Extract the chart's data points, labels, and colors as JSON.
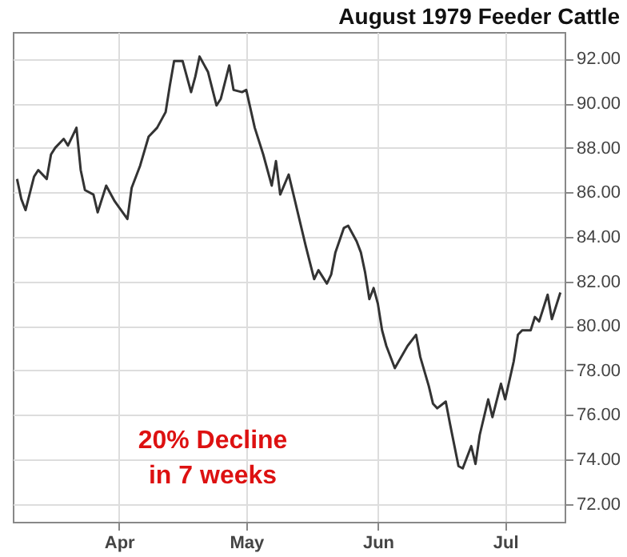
{
  "chart_data": {
    "type": "line",
    "title": "August 1979 Feeder Cattle",
    "x": [
      "1979-03-08",
      "1979-03-09",
      "1979-03-10",
      "1979-03-12",
      "1979-03-13",
      "1979-03-15",
      "1979-03-16",
      "1979-03-17",
      "1979-03-19",
      "1979-03-20",
      "1979-03-22",
      "1979-03-23",
      "1979-03-24",
      "1979-03-26",
      "1979-03-27",
      "1979-03-29",
      "1979-03-31",
      "1979-04-03",
      "1979-04-04",
      "1979-04-06",
      "1979-04-08",
      "1979-04-10",
      "1979-04-12",
      "1979-04-13",
      "1979-04-14",
      "1979-04-16",
      "1979-04-18",
      "1979-04-19",
      "1979-04-20",
      "1979-04-22",
      "1979-04-24",
      "1979-04-25",
      "1979-04-27",
      "1979-04-28",
      "1979-04-30",
      "1979-05-01",
      "1979-05-03",
      "1979-05-05",
      "1979-05-07",
      "1979-05-08",
      "1979-05-09",
      "1979-05-11",
      "1979-05-13",
      "1979-05-15",
      "1979-05-17",
      "1979-05-18",
      "1979-05-20",
      "1979-05-21",
      "1979-05-22",
      "1979-05-24",
      "1979-05-25",
      "1979-05-27",
      "1979-05-28",
      "1979-05-29",
      "1979-05-30",
      "1979-05-31",
      "1979-06-01",
      "1979-06-02",
      "1979-06-03",
      "1979-06-05",
      "1979-06-08",
      "1979-06-10",
      "1979-06-11",
      "1979-06-13",
      "1979-06-14",
      "1979-06-15",
      "1979-06-17",
      "1979-06-18",
      "1979-06-20",
      "1979-06-21",
      "1979-06-23",
      "1979-06-24",
      "1979-06-25",
      "1979-06-27",
      "1979-06-28",
      "1979-06-30",
      "1979-07-01",
      "1979-07-03",
      "1979-07-04",
      "1979-07-05",
      "1979-07-07",
      "1979-07-08",
      "1979-07-09",
      "1979-07-11",
      "1979-07-12",
      "1979-07-14"
    ],
    "series": [
      {
        "color": "#333333",
        "values": [
          86.6,
          85.7,
          85.2,
          86.7,
          87.0,
          86.6,
          87.7,
          88.0,
          88.4,
          88.1,
          88.9,
          87.0,
          86.1,
          85.9,
          85.1,
          86.3,
          85.6,
          84.8,
          86.2,
          87.2,
          88.5,
          88.9,
          89.6,
          90.8,
          91.9,
          91.9,
          90.5,
          91.2,
          92.1,
          91.4,
          89.9,
          90.2,
          91.7,
          90.6,
          90.5,
          90.6,
          88.9,
          87.7,
          86.3,
          87.4,
          85.9,
          86.8,
          85.2,
          83.6,
          82.1,
          82.5,
          81.9,
          82.3,
          83.3,
          84.4,
          84.5,
          83.8,
          83.3,
          82.4,
          81.2,
          81.7,
          81.0,
          79.8,
          79.1,
          78.1,
          79.1,
          79.6,
          78.6,
          77.3,
          76.5,
          76.3,
          76.6,
          75.6,
          73.7,
          73.6,
          74.6,
          73.8,
          75.1,
          76.7,
          75.9,
          77.4,
          76.7,
          78.4,
          79.6,
          79.8,
          79.8,
          80.4,
          80.2,
          81.4,
          80.3,
          81.5
        ]
      }
    ],
    "xlim": [
      "1979-03-07",
      "1979-07-15"
    ],
    "xticks": [
      {
        "value": "1979-04-01",
        "label": "Apr"
      },
      {
        "value": "1979-05-01",
        "label": "May"
      },
      {
        "value": "1979-06-01",
        "label": "Jun"
      },
      {
        "value": "1979-07-01",
        "label": "Jul"
      }
    ],
    "ylim": [
      71.2,
      93.2
    ],
    "yticks": [
      {
        "value": 72,
        "label": "72.00"
      },
      {
        "value": 74,
        "label": "74.00"
      },
      {
        "value": 76,
        "label": "76.00"
      },
      {
        "value": 78,
        "label": "78.00"
      },
      {
        "value": 80,
        "label": "80.00"
      },
      {
        "value": 82,
        "label": "82.00"
      },
      {
        "value": 84,
        "label": "84.00"
      },
      {
        "value": 86,
        "label": "86.00"
      },
      {
        "value": 88,
        "label": "88.00"
      },
      {
        "value": 90,
        "label": "90.00"
      },
      {
        "value": 92,
        "label": "92.00"
      }
    ],
    "grid": true,
    "annotations": [
      "20% Decline\nin 7 weeks"
    ]
  }
}
